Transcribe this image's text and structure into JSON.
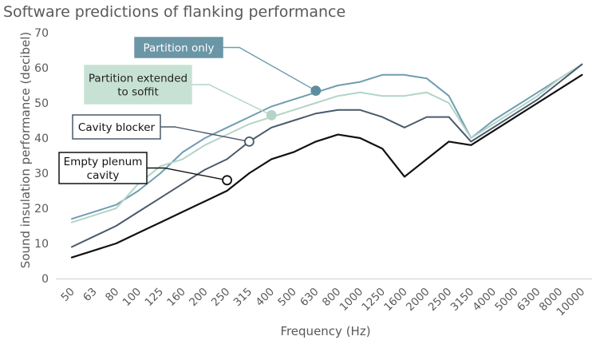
{
  "chart_data": {
    "type": "line",
    "title": "Software predictions of flanking performance",
    "xlabel": "Frequency (Hz)",
    "ylabel": "Sound insulation performance (decibel)",
    "ylim": [
      0,
      70
    ],
    "yticks": [
      "0",
      "10",
      "20",
      "30",
      "40",
      "50",
      "60",
      "70"
    ],
    "grid": false,
    "categories": [
      "50",
      "63",
      "80",
      "100",
      "125",
      "160",
      "200",
      "250",
      "315",
      "400",
      "500",
      "630",
      "800",
      "1000",
      "1250",
      "1600",
      "2000",
      "2500",
      "3150",
      "4000",
      "5000",
      "6300",
      "8000",
      "10000"
    ],
    "series": [
      {
        "name": "Partition only",
        "color": "#6f9db0",
        "values": [
          17,
          19,
          21,
          25,
          30,
          36,
          40,
          43,
          46,
          49,
          51,
          53,
          55,
          56,
          58,
          58,
          57,
          52,
          40,
          45,
          49,
          53,
          57,
          61
        ]
      },
      {
        "name": "Partition extended to soffit",
        "color": "#b3d4c7",
        "values": [
          16,
          18,
          20,
          27,
          32,
          34,
          38,
          41,
          44,
          46,
          48,
          50,
          52,
          53,
          52,
          52,
          53,
          50,
          40,
          44,
          48,
          52,
          57,
          61
        ]
      },
      {
        "name": "Cavity blocker",
        "color": "#4a5a6b",
        "values": [
          9,
          12,
          15,
          19,
          23,
          27,
          31,
          34,
          39,
          43,
          45,
          47,
          48,
          48,
          46,
          43,
          46,
          46,
          39,
          43,
          47,
          51,
          56,
          61
        ]
      },
      {
        "name": "Empty plenum cavity",
        "color": "#111111",
        "values": [
          6,
          8,
          10,
          13,
          16,
          19,
          22,
          25,
          30,
          34,
          36,
          39,
          41,
          40,
          37,
          29,
          34,
          39,
          38,
          42,
          46,
          50,
          54,
          58
        ]
      }
    ],
    "annotations": [
      {
        "label": "Partition only",
        "series": 0,
        "category": "630",
        "value": 53.5,
        "box_fill": "#6a96a6",
        "box_stroke": "#6a96a6",
        "text_color": "#ffffff",
        "leader_color": "#6f9db0",
        "marker_fill": "#5e8d9f",
        "marker_stroke": "#5e8d9f"
      },
      {
        "label_lines": [
          "Partition extended",
          "to soffit"
        ],
        "series": 1,
        "category": "400",
        "value": 46.5,
        "box_fill": "#c7e2d5",
        "box_stroke": "#c7e2d5",
        "text_color": "#222222",
        "leader_color": "#b3d4c7",
        "marker_fill": "#b3d4c7",
        "marker_stroke": "#b3d4c7"
      },
      {
        "label": "Cavity blocker",
        "series": 2,
        "category": "315",
        "value": 39,
        "box_fill": "#ffffff",
        "box_stroke": "#4a5a6b",
        "text_color": "#111111",
        "leader_color": "#4a5a6b",
        "marker_fill": "#ffffff",
        "marker_stroke": "#4a5a6b"
      },
      {
        "label_lines": [
          "Empty plenum",
          "cavity"
        ],
        "series": 3,
        "category": "250",
        "value": 28,
        "box_fill": "#ffffff",
        "box_stroke": "#111111",
        "text_color": "#111111",
        "leader_color": "#111111",
        "marker_fill": "#ffffff",
        "marker_stroke": "#111111"
      }
    ]
  }
}
